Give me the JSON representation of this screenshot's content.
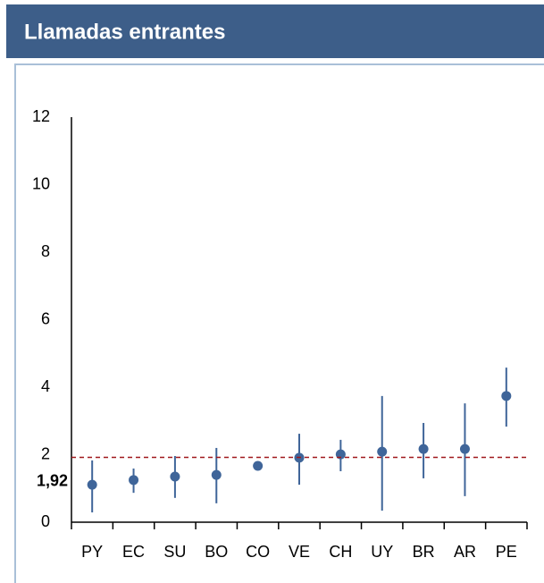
{
  "chart_data": {
    "type": "scatter",
    "title": "Llamadas entrantes",
    "categories": [
      "PY",
      "EC",
      "SU",
      "BO",
      "CO",
      "VE",
      "CH",
      "UY",
      "BR",
      "AR",
      "PE"
    ],
    "series": [
      {
        "color": "#3f6599",
        "values": [
          1.11,
          1.25,
          1.35,
          1.4,
          1.67,
          1.91,
          2.01,
          2.09,
          2.17,
          2.17,
          3.74
        ],
        "low": [
          0.29,
          0.87,
          0.72,
          0.56,
          null,
          1.11,
          1.51,
          0.34,
          1.3,
          0.77,
          2.83
        ],
        "high": [
          1.83,
          1.59,
          1.96,
          2.2,
          null,
          2.62,
          2.44,
          3.74,
          2.94,
          3.52,
          4.58
        ]
      }
    ],
    "reference": {
      "value": 1.92,
      "label": "1,92",
      "color": "#a0181c"
    },
    "ylim": [
      0,
      12
    ],
    "yticks": [
      0,
      2,
      4,
      6,
      8,
      10,
      12
    ],
    "grid": false
  }
}
